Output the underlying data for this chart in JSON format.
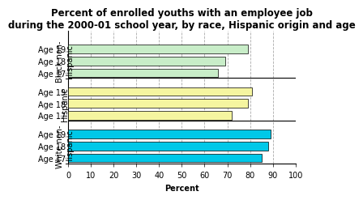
{
  "title": "Percent of enrolled youths with an employee job\nduring the 2000-01 school year, by race, Hispanic origin and age",
  "xlabel": "Percent",
  "groups": [
    {
      "label": "Black non-\nHispanic",
      "ages": [
        "Age 17",
        "Age 18",
        "Age 19"
      ],
      "values": [
        66,
        69,
        79
      ],
      "color": "#c8edc8"
    },
    {
      "label": "Hispanic",
      "ages": [
        "Age 17",
        "Age 18",
        "Age 19"
      ],
      "values": [
        72,
        79,
        81
      ],
      "color": "#f5f5a0"
    },
    {
      "label": "White non-\nHispanic",
      "ages": [
        "Age 17",
        "Age 18",
        "Age 19"
      ],
      "values": [
        85,
        88,
        89
      ],
      "color": "#00c8e8"
    }
  ],
  "xlim": [
    0,
    100
  ],
  "xticks": [
    0,
    10,
    20,
    30,
    40,
    50,
    60,
    70,
    80,
    90,
    100
  ],
  "grid_color": "#aaaaaa",
  "bg_color": "#ffffff",
  "bar_edge_color": "#000000",
  "title_fontsize": 8.5,
  "label_fontsize": 7,
  "tick_fontsize": 7,
  "group_label_fontsize": 7
}
